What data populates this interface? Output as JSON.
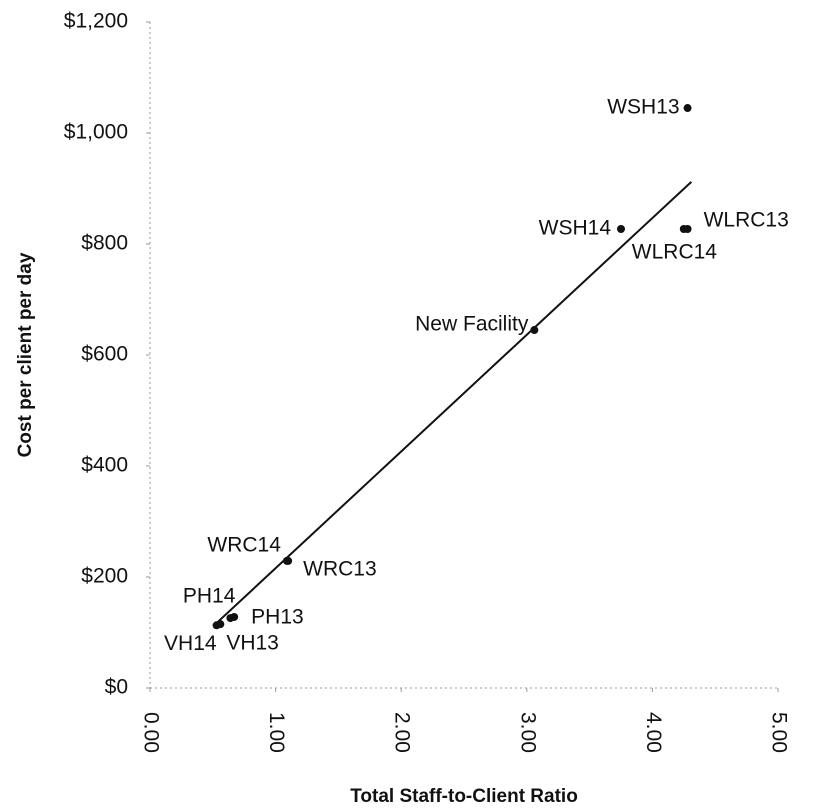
{
  "chart_data": {
    "type": "scatter",
    "x_label": "Total Staff-to-Client Ratio",
    "y_label": "Cost per client per day",
    "point_labels": [
      "WSH13",
      "WSH14",
      "WLRC13",
      "WLRC14",
      "New Facility",
      "WRC14",
      "WRC13",
      "PH14",
      "PH13",
      "VH14",
      "VH13"
    ],
    "x": [
      4.28,
      3.75,
      4.28,
      4.25,
      3.06,
      1.09,
      1.1,
      0.64,
      0.67,
      0.53,
      0.56
    ],
    "values": [
      1045,
      827,
      827,
      827,
      645,
      229,
      229,
      126,
      128,
      113,
      115
    ],
    "color": "#111111",
    "trendline": {
      "x": [
        0.53,
        4.31
      ],
      "values": [
        117,
        912
      ]
    },
    "xlim": [
      0,
      5
    ],
    "xticks": [
      {
        "value": 0,
        "label": "0.00"
      },
      {
        "value": 1,
        "label": "1.00"
      },
      {
        "value": 2,
        "label": "2.00"
      },
      {
        "value": 3,
        "label": "3.00"
      },
      {
        "value": 4,
        "label": "4.00"
      },
      {
        "value": 5,
        "label": "5.00"
      }
    ],
    "ylim": [
      0,
      1200
    ],
    "yticks": [
      {
        "value": 0,
        "label": "$0"
      },
      {
        "value": 200,
        "label": "$200"
      },
      {
        "value": 400,
        "label": "$400"
      },
      {
        "value": 600,
        "label": "$600"
      },
      {
        "value": 800,
        "label": "$800"
      },
      {
        "value": 1000,
        "label": "$1,000"
      },
      {
        "value": 1200,
        "label": "$1,200"
      }
    ],
    "grid": false
  }
}
